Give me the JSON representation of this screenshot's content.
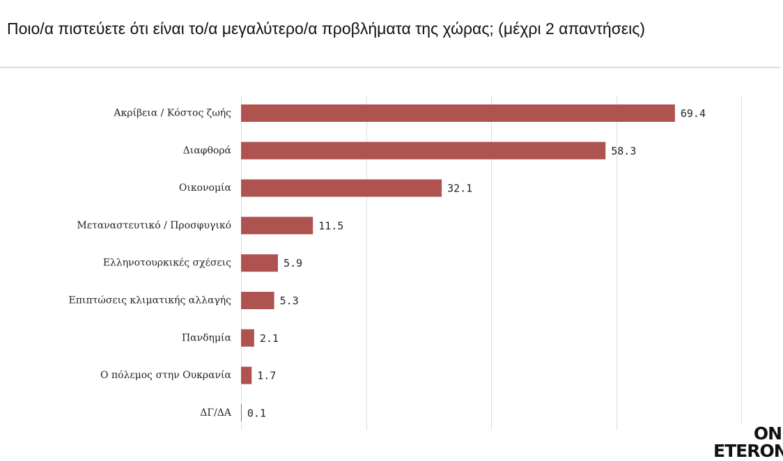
{
  "title": "Ποιο/α πιστεύετε ότι είναι το/α μεγαλύτερο/α προβλήματα της χώρας; (μέχρι 2 απαντήσεις)",
  "logo": {
    "line1": "ON",
    "line2": "ETERON"
  },
  "colors": {
    "bar": "#ae5350",
    "grid": "#dddddd",
    "text": "#222222"
  },
  "chart_data": {
    "type": "bar",
    "orientation": "horizontal",
    "categories": [
      "Ακρίβεια / Κόστος ζωής",
      "Διαφθορά",
      "Οικονομία",
      "Μεταναστευτικό / Προσφυγικό",
      "Ελληνοτουρκικές σχέσεις",
      "Επιπτώσεις κλιματικής αλλαγής",
      "Πανδημία",
      "Ο πόλεμος στην Ουκρανία",
      "ΔΓ/ΔΑ"
    ],
    "values": [
      69.4,
      58.3,
      32.1,
      11.5,
      5.9,
      5.3,
      2.1,
      1.7,
      0.1
    ],
    "value_labels": [
      "69.4",
      "58.3",
      "32.1",
      "11.5",
      "5.9",
      "5.3",
      "2.1",
      "1.7",
      "0.1"
    ],
    "xlim": [
      0,
      80
    ],
    "grid": true,
    "gridlines_at": [
      0,
      20,
      40,
      60,
      80
    ],
    "xlabel": "",
    "ylabel": ""
  }
}
